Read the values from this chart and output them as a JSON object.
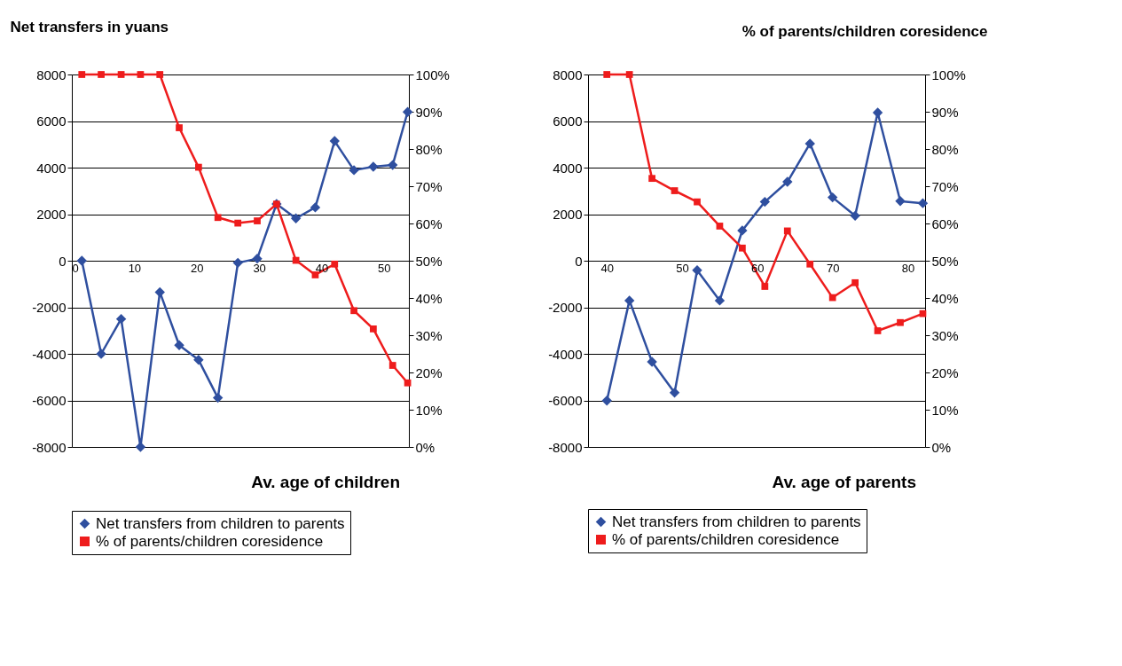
{
  "chart_data": [
    {
      "type": "line",
      "ylabel": "Net transfers in yuans",
      "xlabel": "Av. age of children",
      "xlim": [
        0,
        54
      ],
      "xticks": [
        0,
        10,
        20,
        30,
        40,
        50
      ],
      "ylim": [
        -8000,
        8000
      ],
      "yticks": [
        -8000,
        -6000,
        -4000,
        -2000,
        0,
        2000,
        4000,
        6000,
        8000
      ],
      "y2lim": [
        0,
        100
      ],
      "y2ticks": [
        {
          "value": 0,
          "label": "0%"
        },
        {
          "value": 10,
          "label": "10%"
        },
        {
          "value": 20,
          "label": "20%"
        },
        {
          "value": 30,
          "label": "30%"
        },
        {
          "value": 40,
          "label": "40%"
        },
        {
          "value": 50,
          "label": "50%"
        },
        {
          "value": 60,
          "label": "60%"
        },
        {
          "value": 70,
          "label": "70%"
        },
        {
          "value": 80,
          "label": "80%"
        },
        {
          "value": 90,
          "label": "90%"
        },
        {
          "value": 100,
          "label": "100%"
        }
      ],
      "grid": "y",
      "legend": "bottom",
      "line_style": "solid",
      "x": [
        1.6,
        4.7,
        7.9,
        11.0,
        14.1,
        17.2,
        20.3,
        23.4,
        26.6,
        29.7,
        32.8,
        35.9,
        39.0,
        42.1,
        45.2,
        48.3,
        51.4,
        53.8
      ],
      "series": [
        {
          "name": "Net transfers from children to parents",
          "color": "#2f4f9f",
          "marker": "diamond",
          "values": [
            0,
            -4000,
            -2500,
            -8000,
            -1350,
            -3630,
            -4260,
            -5890,
            -90,
            90,
            2440,
            1820,
            2290,
            5140,
            3890,
            4040,
            4110,
            6390
          ]
        },
        {
          "name": "% of parents/children coresidence",
          "color": "#ee1c1c",
          "marker": "square",
          "axis": "y2",
          "values": [
            100,
            100,
            100,
            100,
            100,
            85.7,
            75.1,
            61.6,
            60.1,
            60.7,
            65.2,
            50.1,
            46.2,
            49.1,
            36.6,
            31.7,
            21.9,
            17.2
          ]
        }
      ]
    },
    {
      "type": "line",
      "y2label": "% of parents/children coresidence",
      "xlabel": "Av. age of parents",
      "xlim": [
        37.5,
        82.3
      ],
      "xticks": [
        40,
        50,
        60,
        70,
        80
      ],
      "ylim": [
        -8000,
        8000
      ],
      "yticks": [
        -8000,
        -6000,
        -4000,
        -2000,
        0,
        2000,
        4000,
        6000,
        8000
      ],
      "y2lim": [
        0,
        100
      ],
      "y2ticks": [
        {
          "value": 0,
          "label": "0%"
        },
        {
          "value": 10,
          "label": "10%"
        },
        {
          "value": 20,
          "label": "20%"
        },
        {
          "value": 30,
          "label": "30%"
        },
        {
          "value": 40,
          "label": "40%"
        },
        {
          "value": 50,
          "label": "50%"
        },
        {
          "value": 60,
          "label": "60%"
        },
        {
          "value": 70,
          "label": "70%"
        },
        {
          "value": 80,
          "label": "80%"
        },
        {
          "value": 90,
          "label": "90%"
        },
        {
          "value": 100,
          "label": "100%"
        }
      ],
      "grid": "y",
      "legend": "bottom",
      "line_style": "solid",
      "x": [
        40,
        43,
        46,
        49,
        52,
        55,
        58,
        61,
        64,
        67,
        70,
        73,
        76,
        79,
        82
      ],
      "series": [
        {
          "name": "Net transfers from children to parents",
          "color": "#2f4f9f",
          "marker": "diamond",
          "values": [
            -6010,
            -1710,
            -4340,
            -5670,
            -410,
            -1710,
            1300,
            2530,
            3390,
            5030,
            2720,
            1930,
            6360,
            2560,
            2470
          ]
        },
        {
          "name": "% of parents/children coresidence",
          "color": "#ee1c1c",
          "marker": "square",
          "axis": "y2",
          "values": [
            100,
            100,
            72.1,
            68.8,
            65.8,
            59.3,
            53.4,
            43.1,
            58.0,
            49.1,
            40.1,
            44.1,
            31.2,
            33.4,
            35.8
          ]
        }
      ]
    }
  ]
}
